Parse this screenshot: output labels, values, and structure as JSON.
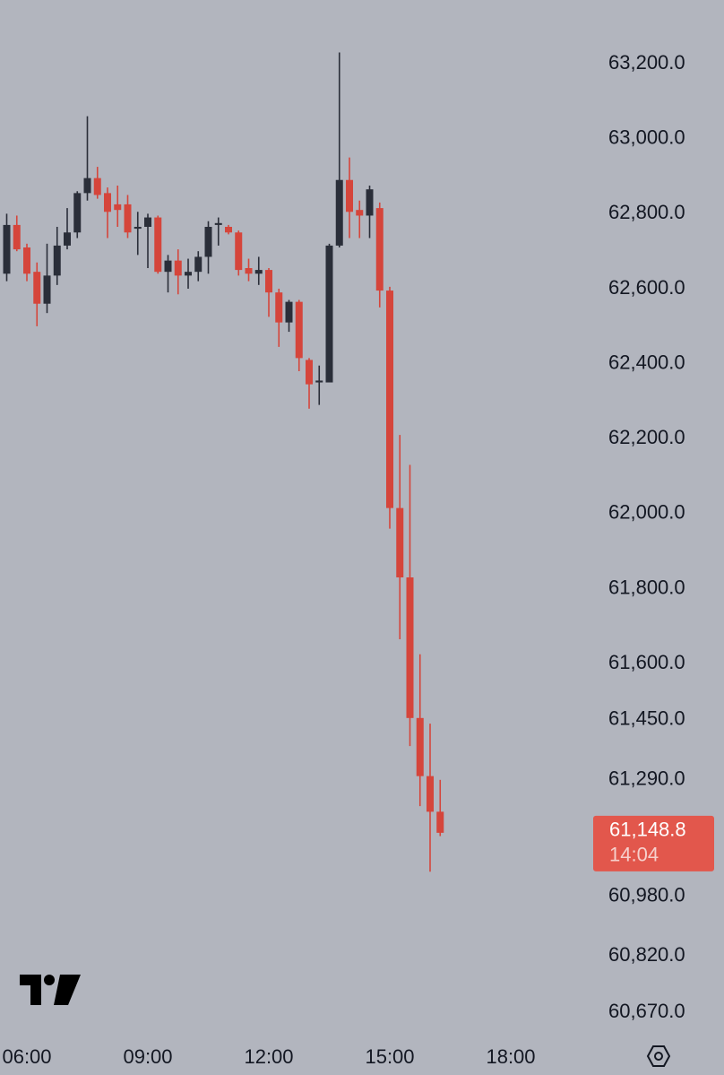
{
  "chart_data": {
    "type": "candlestick",
    "up_color": "#2a2e39",
    "down_color": "#d5453b",
    "x": [
      5.5,
      5.75,
      6,
      6.25,
      6.5,
      6.75,
      7,
      7.25,
      7.5,
      7.75,
      8,
      8.25,
      8.5,
      8.75,
      9,
      9.25,
      9.5,
      9.75,
      10,
      10.25,
      10.5,
      10.75,
      11,
      11.25,
      11.5,
      11.75,
      12,
      12.25,
      12.5,
      12.75,
      13,
      13.25,
      13.5,
      13.75,
      14,
      14.25,
      14.5,
      14.75,
      15,
      15.25,
      15.5,
      15.75,
      16,
      16.25
    ],
    "open": [
      62640,
      62770,
      62710,
      62645,
      62560,
      62635,
      62715,
      62750,
      62855,
      62895,
      62855,
      62825,
      62825,
      62760,
      62765,
      62790,
      62645,
      62675,
      62635,
      62645,
      62685,
      62770,
      62765,
      62750,
      62655,
      62640,
      62650,
      62590,
      62510,
      62565,
      62410,
      62350,
      62350,
      62715,
      62890,
      62810,
      62795,
      62815,
      62595,
      62015,
      61830,
      61455,
      61300,
      61205
    ],
    "high": [
      62800,
      62795,
      62720,
      62670,
      62720,
      62765,
      62815,
      62860,
      63060,
      62925,
      62870,
      62875,
      62850,
      62805,
      62800,
      62795,
      62690,
      62705,
      62680,
      62700,
      62780,
      62790,
      62770,
      62755,
      62680,
      62685,
      62655,
      62600,
      62570,
      62570,
      62415,
      62395,
      62720,
      63230,
      62950,
      62835,
      62875,
      62830,
      62605,
      62210,
      62130,
      61625,
      61440,
      61290
    ],
    "low": [
      62620,
      62700,
      62620,
      62500,
      62535,
      62610,
      62705,
      62735,
      62835,
      62840,
      62735,
      62765,
      62735,
      62690,
      62655,
      62640,
      62590,
      62585,
      62600,
      62620,
      62640,
      62715,
      62745,
      62635,
      62620,
      62610,
      62525,
      62445,
      62485,
      62380,
      62280,
      62290,
      62350,
      62710,
      62735,
      62735,
      62735,
      62550,
      61960,
      61665,
      61380,
      61220,
      61045,
      61140
    ],
    "close": [
      62770,
      62705,
      62640,
      62560,
      62635,
      62715,
      62750,
      62855,
      62895,
      62850,
      62805,
      62810,
      62750,
      62765,
      62790,
      62645,
      62675,
      62635,
      62645,
      62685,
      62765,
      62775,
      62750,
      62650,
      62640,
      62650,
      62590,
      62510,
      62565,
      62415,
      62345,
      62355,
      62715,
      62890,
      62805,
      62795,
      62865,
      62595,
      62015,
      61830,
      61455,
      61300,
      61205,
      61148.8
    ],
    "xlim": [
      5.3333,
      20
    ],
    "xticks": [
      {
        "value": 6,
        "label": "06:00"
      },
      {
        "value": 9,
        "label": "09:00"
      },
      {
        "value": 12,
        "label": "12:00"
      },
      {
        "value": 15,
        "label": "15:00"
      },
      {
        "value": 18,
        "label": "18:00"
      }
    ],
    "ylim": [
      60620,
      63370
    ],
    "yticks": [
      {
        "value": 63200,
        "label": "63,200.0"
      },
      {
        "value": 63000,
        "label": "63,000.0"
      },
      {
        "value": 62800,
        "label": "62,800.0"
      },
      {
        "value": 62600,
        "label": "62,600.0"
      },
      {
        "value": 62400,
        "label": "62,400.0"
      },
      {
        "value": 62200,
        "label": "62,200.0"
      },
      {
        "value": 62000,
        "label": "62,000.0"
      },
      {
        "value": 61800,
        "label": "61,800.0"
      },
      {
        "value": 61600,
        "label": "61,600.0"
      },
      {
        "value": 61450,
        "label": "61,450.0"
      },
      {
        "value": 61290,
        "label": "61,290.0"
      },
      {
        "value": 60980,
        "label": "60,980.0"
      },
      {
        "value": 60820,
        "label": "60,820.0"
      },
      {
        "value": 60670,
        "label": "60,670.0"
      }
    ],
    "current_price": {
      "value": 61148.8,
      "label": "61,148.8"
    },
    "countdown": "14:04",
    "current_price_color": "#e2574c"
  }
}
